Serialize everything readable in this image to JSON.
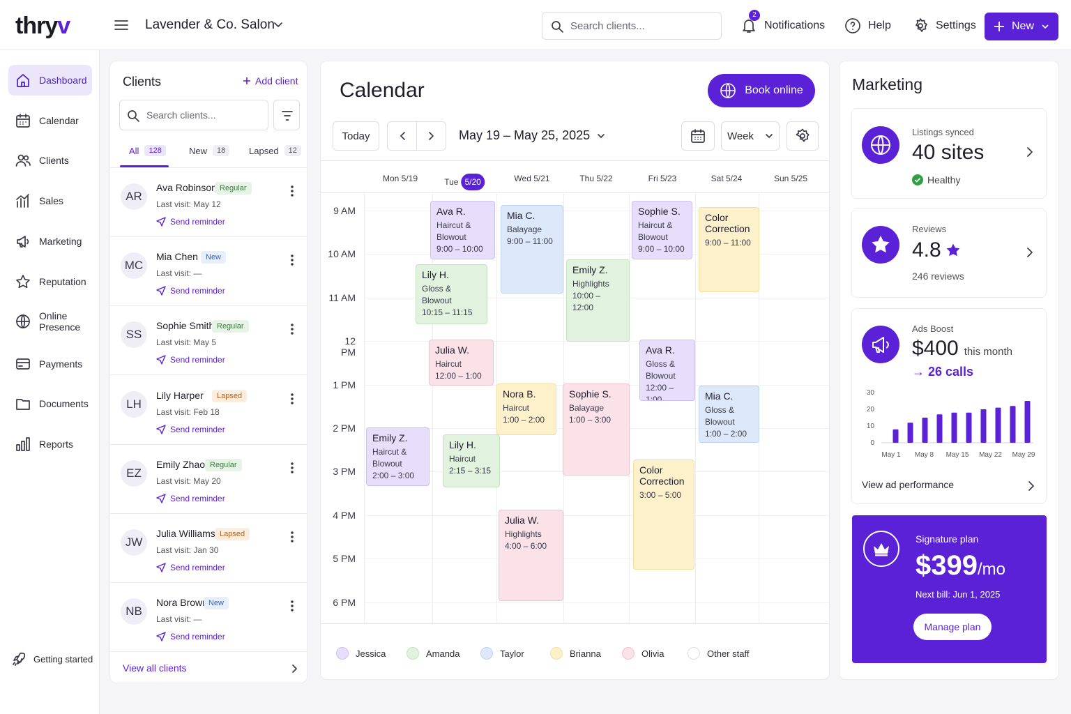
{
  "app": {
    "logo_main": "thry",
    "logo_accent": "v",
    "business": "Lavender & Co. Salon"
  },
  "topbar": {
    "search_placeholder": "Search clients...",
    "notifications_label": "Notifications",
    "notifications_count": "2",
    "help_label": "Help",
    "settings_label": "Settings",
    "new_label": "New"
  },
  "sidebar": {
    "items": [
      {
        "label": "Dashboard",
        "icon": "home-icon"
      },
      {
        "label": "Calendar",
        "icon": "calendar-icon"
      },
      {
        "label": "Clients",
        "icon": "users-icon"
      },
      {
        "label": "Sales",
        "icon": "sales-bars-icon"
      },
      {
        "label": "Marketing",
        "icon": "megaphone-icon"
      },
      {
        "label": "Reputation",
        "icon": "star-icon"
      },
      {
        "label": "Online Presence",
        "icon": "globe-icon"
      },
      {
        "label": "Payments",
        "icon": "card-icon"
      },
      {
        "label": "Documents",
        "icon": "folder-icon"
      },
      {
        "label": "Reports",
        "icon": "reports-icon"
      }
    ],
    "active": "Dashboard",
    "getting_started": "Getting started"
  },
  "clients": {
    "title": "Clients",
    "add_label": "Add client",
    "search_placeholder": "Search clients...",
    "tabs": [
      {
        "label": "All",
        "count": "128"
      },
      {
        "label": "New",
        "count": "18"
      },
      {
        "label": "Lapsed",
        "count": "12"
      }
    ],
    "reminder_label": "Send reminder",
    "rows": [
      {
        "initials": "AR",
        "name": "Ava Robinson",
        "badge": "Regular",
        "last": "Last visit: May 12"
      },
      {
        "initials": "MC",
        "name": "Mia Chen",
        "badge": "New",
        "last": "Last visit: —"
      },
      {
        "initials": "SS",
        "name": "Sophie Smith",
        "badge": "Regular",
        "last": "Last visit: May 5"
      },
      {
        "initials": "LH",
        "name": "Lily Harper",
        "badge": "Lapsed",
        "last": "Last visit: Feb 18"
      },
      {
        "initials": "EZ",
        "name": "Emily Zhao",
        "badge": "Regular",
        "last": "Last visit: May 20"
      },
      {
        "initials": "JW",
        "name": "Julia Williams",
        "badge": "Lapsed",
        "last": "Last visit: Jan 30"
      },
      {
        "initials": "NB",
        "name": "Nora Brown",
        "badge": "New",
        "last": "Last visit: —"
      }
    ],
    "view_all": "View all clients"
  },
  "calendar": {
    "title": "Calendar",
    "book_online": "Book online",
    "today": "Today",
    "range": "May 19 – May 25, 2025",
    "view": "Week",
    "days": [
      {
        "label": "Mon 5/19"
      },
      {
        "label": "Tue",
        "date": "5/20",
        "today": true
      },
      {
        "label": "Wed 5/21"
      },
      {
        "label": "Thu 5/22"
      },
      {
        "label": "Fri 5/23"
      },
      {
        "label": "Sat 5/24"
      },
      {
        "label": "Sun 5/25"
      }
    ],
    "times": [
      "9 AM",
      "10 AM",
      "11 AM",
      "12 PM",
      "1 PM",
      "2 PM",
      "3 PM",
      "4 PM",
      "5 PM",
      "6 PM"
    ],
    "events": [
      {
        "name": "Ava R.",
        "service": "Haircut & Blowout",
        "time": "9:00 – 10:00",
        "staff": "Jessica"
      },
      {
        "name": "Mia C.",
        "service": "Balayage",
        "time": "9:00 – 11:00",
        "staff": "Taylor"
      },
      {
        "name": "Sophie S.",
        "service": "Haircut & Blowout",
        "time": "9:00 – 10:00",
        "staff": "Jessica"
      },
      {
        "name": "Color Correction",
        "service": "",
        "time": "9:00 – 11:00",
        "staff": "Brianna"
      },
      {
        "name": "Lily H.",
        "service": "Gloss & Blowout",
        "time": "10:15 – 11:15",
        "staff": "Amanda"
      },
      {
        "name": "Emily Z.",
        "service": "Highlights",
        "time": "10:00 – 12:00",
        "staff": "Amanda"
      },
      {
        "name": "Julia W.",
        "service": "Haircut",
        "time": "12:00 – 1:00",
        "staff": "Olivia"
      },
      {
        "name": "Ava R.",
        "service": "Gloss & Blowout",
        "time": "12:00 – 1:00",
        "staff": "Jessica"
      },
      {
        "name": "Nora B.",
        "service": "Haircut",
        "time": "1:00 – 2:00",
        "staff": "Brianna"
      },
      {
        "name": "Sophie S.",
        "service": "Balayage",
        "time": "1:00 – 3:00",
        "staff": "Olivia"
      },
      {
        "name": "Mia C.",
        "service": "Gloss & Blowout",
        "time": "1:00 – 2:00",
        "staff": "Taylor"
      },
      {
        "name": "Emily Z.",
        "service": "Haircut & Blowout",
        "time": "2:00 – 3:00",
        "staff": "Jessica"
      },
      {
        "name": "Lily H.",
        "service": "Haircut",
        "time": "2:15 – 3:15",
        "staff": "Amanda"
      },
      {
        "name": "Color Correction",
        "service": "",
        "time": "3:00 – 5:00",
        "staff": "Brianna"
      },
      {
        "name": "Julia W.",
        "service": "Highlights",
        "time": "4:00 – 6:00",
        "staff": "Olivia"
      }
    ],
    "legend": [
      {
        "label": "Jessica",
        "color": "#e6defa",
        "border": "#cfc0f3"
      },
      {
        "label": "Amanda",
        "color": "#e1f2de",
        "border": "#c2e3bc"
      },
      {
        "label": "Taylor",
        "color": "#dde9fa",
        "border": "#bcd3f3"
      },
      {
        "label": "Brianna",
        "color": "#fdf1cc",
        "border": "#f4dea0"
      },
      {
        "label": "Olivia",
        "color": "#fbe1e8",
        "border": "#f3c2cf"
      },
      {
        "label": "Other staff",
        "color": "#ffffff",
        "border": "#dcdce4"
      }
    ]
  },
  "marketing": {
    "title": "Marketing",
    "listings": {
      "label": "Listings synced",
      "value": "40 sites",
      "status": "Healthy"
    },
    "reviews": {
      "label": "Reviews",
      "value": "4.8",
      "count": "246 reviews"
    },
    "ads": {
      "label": "Ads Boost",
      "value": "$400",
      "suffix": "this month",
      "calls": "→ 26 calls",
      "link": "View ad performance"
    },
    "plan": {
      "label": "Signature plan",
      "price": "$399",
      "per": "/mo",
      "next": "Next bill: Jun 1, 2025",
      "manage": "Manage plan"
    }
  },
  "chart_data": {
    "type": "bar",
    "values": [
      8,
      12,
      15,
      17,
      18,
      18,
      20,
      21,
      22,
      25
    ],
    "x_ticks": [
      "May 1",
      "May 8",
      "May 15",
      "May 22",
      "May 29"
    ],
    "y_ticks": [
      "0",
      "10",
      "20",
      "30"
    ],
    "ylim": [
      0,
      30
    ],
    "color": "#5b21d6"
  },
  "colors": {
    "accent": "#5b21d6"
  }
}
